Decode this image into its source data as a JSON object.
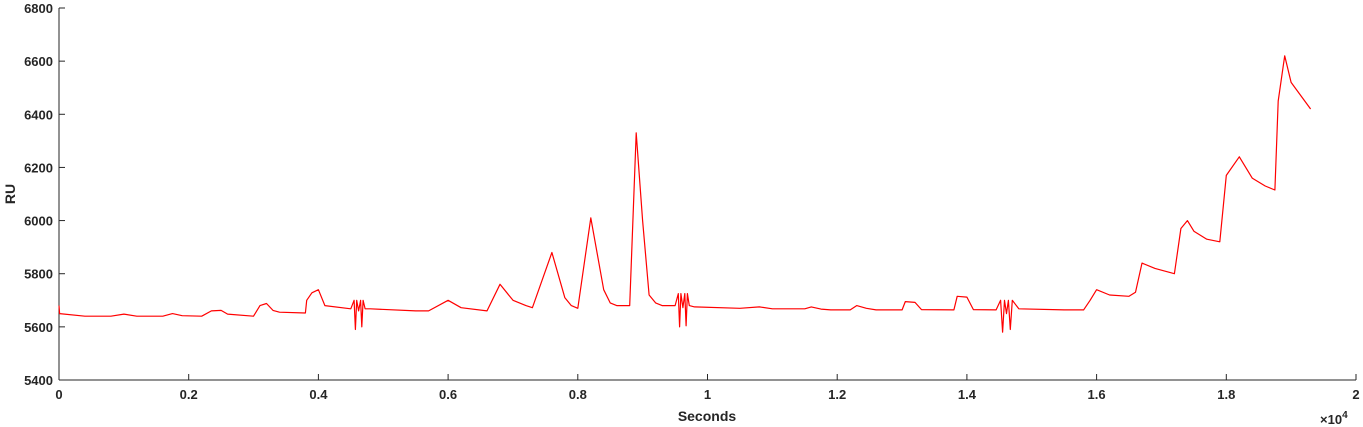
{
  "chart_data": {
    "type": "line",
    "xlabel": "Seconds",
    "ylabel": "RU",
    "x_exponent_label": "×10",
    "x_exponent_power": "4",
    "xlim": [
      0,
      2
    ],
    "ylim": [
      5400,
      6800
    ],
    "xticks": [
      0,
      0.2,
      0.4,
      0.6,
      0.8,
      1,
      1.2,
      1.4,
      1.6,
      1.8,
      2
    ],
    "xtick_labels": [
      "0",
      "0.2",
      "0.4",
      "0.6",
      "0.8",
      "1",
      "1.2",
      "1.4",
      "1.6",
      "1.8",
      "2"
    ],
    "yticks": [
      5400,
      5600,
      5800,
      6000,
      6200,
      6400,
      6600,
      6800
    ],
    "ytick_labels": [
      "5400",
      "5600",
      "5800",
      "6000",
      "6200",
      "6400",
      "6600",
      "6800"
    ],
    "grid": false,
    "line_color": "#ff0000",
    "axis_color": "#262626",
    "series": [
      {
        "x": [
          0,
          0.001,
          0.04,
          0.08,
          0.1,
          0.12,
          0.16,
          0.175,
          0.19,
          0.22,
          0.235,
          0.25,
          0.26,
          0.3,
          0.31,
          0.32,
          0.33,
          0.34,
          0.38,
          0.382,
          0.39,
          0.4,
          0.41,
          0.45,
          0.455,
          0.457,
          0.459,
          0.462,
          0.465,
          0.467,
          0.469,
          0.472,
          0.48,
          0.55,
          0.57,
          0.6,
          0.62,
          0.66,
          0.68,
          0.7,
          0.72,
          0.73,
          0.76,
          0.78,
          0.79,
          0.8,
          0.82,
          0.84,
          0.85,
          0.86,
          0.87,
          0.88,
          0.89,
          0.9,
          0.91,
          0.92,
          0.93,
          0.95,
          0.955,
          0.957,
          0.959,
          0.962,
          0.965,
          0.967,
          0.969,
          0.972,
          0.98,
          1.05,
          1.08,
          1.1,
          1.15,
          1.16,
          1.175,
          1.19,
          1.22,
          1.23,
          1.245,
          1.26,
          1.3,
          1.305,
          1.32,
          1.33,
          1.38,
          1.385,
          1.4,
          1.41,
          1.445,
          1.452,
          1.455,
          1.458,
          1.461,
          1.464,
          1.467,
          1.47,
          1.48,
          1.55,
          1.58,
          1.59,
          1.6,
          1.62,
          1.65,
          1.66,
          1.67,
          1.69,
          1.72,
          1.73,
          1.74,
          1.75,
          1.77,
          1.79,
          1.8,
          1.82,
          1.84,
          1.86,
          1.875,
          1.88,
          1.89,
          1.9,
          1.93
        ],
        "y": [
          5680,
          5650,
          5640,
          5640,
          5648,
          5640,
          5640,
          5650,
          5642,
          5640,
          5660,
          5662,
          5648,
          5640,
          5680,
          5688,
          5662,
          5655,
          5652,
          5700,
          5728,
          5740,
          5680,
          5668,
          5700,
          5590,
          5700,
          5660,
          5700,
          5600,
          5700,
          5668,
          5668,
          5660,
          5660,
          5700,
          5672,
          5660,
          5760,
          5700,
          5680,
          5672,
          5880,
          5710,
          5680,
          5670,
          6010,
          5740,
          5690,
          5680,
          5680,
          5680,
          6330,
          6000,
          5720,
          5690,
          5680,
          5680,
          5725,
          5600,
          5725,
          5672,
          5725,
          5604,
          5725,
          5680,
          5675,
          5670,
          5675,
          5668,
          5668,
          5675,
          5667,
          5664,
          5664,
          5680,
          5670,
          5664,
          5664,
          5695,
          5692,
          5665,
          5664,
          5715,
          5712,
          5665,
          5664,
          5700,
          5580,
          5700,
          5650,
          5700,
          5590,
          5700,
          5668,
          5664,
          5664,
          5700,
          5740,
          5720,
          5715,
          5730,
          5840,
          5820,
          5800,
          5970,
          6000,
          5960,
          5930,
          5920,
          6170,
          6240,
          6160,
          6130,
          6115,
          6450,
          6620,
          6520,
          6420
        ]
      }
    ]
  }
}
